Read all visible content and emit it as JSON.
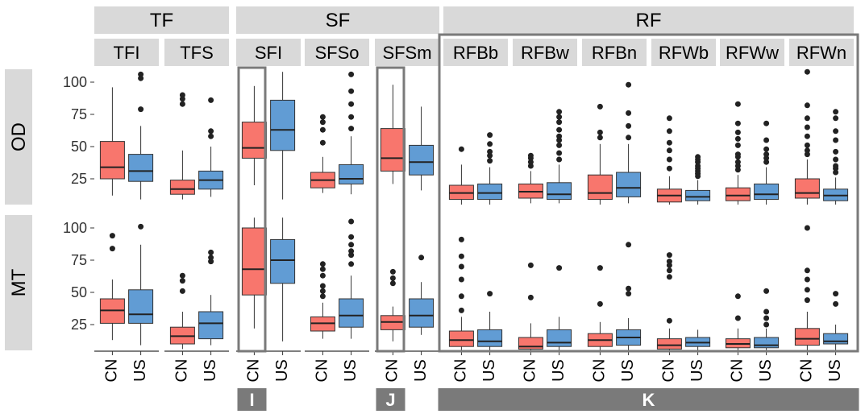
{
  "chart_data": {
    "type": "boxplot",
    "title": "",
    "xlabel": "",
    "ylabel": "",
    "ylim": [
      5,
      110
    ],
    "yticks": [
      25,
      50,
      75,
      100
    ],
    "groups": [
      {
        "label": "TF",
        "panels": [
          "TFI",
          "TFS"
        ]
      },
      {
        "label": "SF",
        "panels": [
          "SFI",
          "SFSo",
          "SFSm"
        ]
      },
      {
        "label": "RF",
        "panels": [
          "RFBb",
          "RFBw",
          "RFBn",
          "RFWb",
          "RFWw",
          "RFWn"
        ]
      }
    ],
    "panels": [
      "TFI",
      "TFS",
      "SFI",
      "SFSo",
      "SFSm",
      "RFBb",
      "RFBw",
      "RFBn",
      "RFWb",
      "RFWw",
      "RFWn"
    ],
    "rows": [
      "OD",
      "MT"
    ],
    "categories": [
      "CN",
      "US"
    ],
    "colors": {
      "CN": "#f8766d",
      "US": "#619cd4"
    },
    "annotations": [
      {
        "label": "I",
        "panels": [
          "SFI"
        ]
      },
      {
        "label": "J",
        "panels": [
          "SFSm"
        ]
      },
      {
        "label": "K",
        "panels": [
          "RFBb",
          "RFBw",
          "RFBn",
          "RFWb",
          "RFWw",
          "RFWn"
        ]
      }
    ],
    "series": [
      {
        "row": "OD",
        "panel": "TFI",
        "cat": "CN",
        "min": 12,
        "q1": 25,
        "median": 34,
        "q3": 54,
        "max": 96,
        "outliers": []
      },
      {
        "row": "OD",
        "panel": "TFI",
        "cat": "US",
        "min": 9,
        "q1": 23,
        "median": 31,
        "q3": 44,
        "max": 66,
        "outliers": [
          79,
          103,
          106
        ]
      },
      {
        "row": "OD",
        "panel": "TFS",
        "cat": "CN",
        "min": 9,
        "q1": 13,
        "median": 17,
        "q3": 24,
        "max": 47,
        "outliers": [
          83,
          87,
          90
        ]
      },
      {
        "row": "OD",
        "panel": "TFS",
        "cat": "US",
        "min": 11,
        "q1": 17,
        "median": 24,
        "q3": 31,
        "max": 50,
        "outliers": [
          58,
          62,
          86
        ]
      },
      {
        "row": "OD",
        "panel": "SFI",
        "cat": "CN",
        "min": 20,
        "q1": 41,
        "median": 49,
        "q3": 69,
        "max": 97,
        "outliers": []
      },
      {
        "row": "OD",
        "panel": "SFI",
        "cat": "US",
        "min": 9,
        "q1": 47,
        "median": 63,
        "q3": 86,
        "max": 108,
        "outliers": []
      },
      {
        "row": "OD",
        "panel": "SFSo",
        "cat": "CN",
        "min": 14,
        "q1": 18,
        "median": 24,
        "q3": 30,
        "max": 42,
        "outliers": [
          53,
          63,
          69,
          73
        ]
      },
      {
        "row": "OD",
        "panel": "SFSo",
        "cat": "US",
        "min": 13,
        "q1": 21,
        "median": 25,
        "q3": 36,
        "max": 58,
        "outliers": [
          64,
          73,
          83,
          93,
          106
        ]
      },
      {
        "row": "OD",
        "panel": "SFSm",
        "cat": "CN",
        "min": 21,
        "q1": 31,
        "median": 41,
        "q3": 64,
        "max": 98,
        "outliers": []
      },
      {
        "row": "OD",
        "panel": "SFSm",
        "cat": "US",
        "min": 16,
        "q1": 28,
        "median": 38,
        "q3": 51,
        "max": 81,
        "outliers": []
      },
      {
        "row": "OD",
        "panel": "RFBb",
        "cat": "CN",
        "min": 5,
        "q1": 9,
        "median": 14,
        "q3": 20,
        "max": 36,
        "outliers": [
          48
        ]
      },
      {
        "row": "OD",
        "panel": "RFBb",
        "cat": "US",
        "min": 5,
        "q1": 9,
        "median": 14,
        "q3": 21,
        "max": 34,
        "outliers": [
          39,
          43,
          46,
          52,
          59
        ]
      },
      {
        "row": "OD",
        "panel": "RFBw",
        "cat": "CN",
        "min": 6,
        "q1": 10,
        "median": 15,
        "q3": 21,
        "max": 31,
        "outliers": [
          35,
          38,
          41,
          43
        ]
      },
      {
        "row": "OD",
        "panel": "RFBw",
        "cat": "US",
        "min": 6,
        "q1": 9,
        "median": 13,
        "q3": 22,
        "max": 36,
        "outliers": [
          40,
          45,
          51,
          55,
          58,
          63,
          69,
          73,
          77
        ]
      },
      {
        "row": "OD",
        "panel": "RFBn",
        "cat": "CN",
        "min": 4,
        "q1": 9,
        "median": 14,
        "q3": 28,
        "max": 52,
        "outliers": [
          57,
          61,
          81
        ]
      },
      {
        "row": "OD",
        "panel": "RFBn",
        "cat": "US",
        "min": 6,
        "q1": 11,
        "median": 18,
        "q3": 30,
        "max": 52,
        "outliers": [
          57,
          66,
          76,
          98
        ]
      },
      {
        "row": "OD",
        "panel": "RFWb",
        "cat": "CN",
        "min": 4,
        "q1": 7,
        "median": 12,
        "q3": 17,
        "max": 27,
        "outliers": [
          33,
          40,
          47,
          53,
          62,
          72
        ]
      },
      {
        "row": "OD",
        "panel": "RFWb",
        "cat": "US",
        "min": 4,
        "q1": 8,
        "median": 11,
        "q3": 16,
        "max": 24,
        "outliers": [
          27,
          29,
          31,
          33,
          35,
          38,
          40,
          42
        ]
      },
      {
        "row": "OD",
        "panel": "RFWw",
        "cat": "CN",
        "min": 4,
        "q1": 8,
        "median": 12,
        "q3": 18,
        "max": 28,
        "outliers": [
          32,
          35,
          38,
          42,
          44,
          51,
          56,
          61,
          68,
          83
        ]
      },
      {
        "row": "OD",
        "panel": "RFWw",
        "cat": "US",
        "min": 4,
        "q1": 9,
        "median": 13,
        "q3": 21,
        "max": 34,
        "outliers": [
          38,
          41,
          44,
          48,
          55,
          68
        ]
      },
      {
        "row": "OD",
        "panel": "RFWn",
        "cat": "CN",
        "min": 5,
        "q1": 10,
        "median": 14,
        "q3": 25,
        "max": 40,
        "outliers": [
          44,
          47,
          51,
          58,
          65,
          72,
          82,
          108
        ]
      },
      {
        "row": "OD",
        "panel": "RFWn",
        "cat": "US",
        "min": 5,
        "q1": 8,
        "median": 12,
        "q3": 17,
        "max": 26,
        "outliers": [
          30,
          33,
          35,
          40,
          46,
          55,
          62,
          72,
          77
        ]
      },
      {
        "row": "MT",
        "panel": "TFI",
        "cat": "CN",
        "min": 13,
        "q1": 26,
        "median": 36,
        "q3": 45,
        "max": 60,
        "outliers": [
          84,
          94
        ]
      },
      {
        "row": "MT",
        "panel": "TFI",
        "cat": "US",
        "min": 9,
        "q1": 26,
        "median": 33,
        "q3": 52,
        "max": 87,
        "outliers": [
          101
        ]
      },
      {
        "row": "MT",
        "panel": "TFS",
        "cat": "CN",
        "min": 6,
        "q1": 10,
        "median": 16,
        "q3": 23,
        "max": 35,
        "outliers": [
          51,
          59,
          63
        ]
      },
      {
        "row": "MT",
        "panel": "TFS",
        "cat": "US",
        "min": 9,
        "q1": 14,
        "median": 26,
        "q3": 35,
        "max": 48,
        "outliers": [
          74,
          77,
          81
        ]
      },
      {
        "row": "MT",
        "panel": "SFI",
        "cat": "CN",
        "min": 22,
        "q1": 48,
        "median": 68,
        "q3": 100,
        "max": 108,
        "outliers": []
      },
      {
        "row": "MT",
        "panel": "SFI",
        "cat": "US",
        "min": 12,
        "q1": 57,
        "median": 75,
        "q3": 91,
        "max": 108,
        "outliers": []
      },
      {
        "row": "MT",
        "panel": "SFSo",
        "cat": "CN",
        "min": 14,
        "q1": 20,
        "median": 26,
        "q3": 31,
        "max": 42,
        "outliers": [
          47,
          51,
          55,
          63,
          68,
          72
        ]
      },
      {
        "row": "MT",
        "panel": "SFSo",
        "cat": "US",
        "min": 14,
        "q1": 23,
        "median": 32,
        "q3": 45,
        "max": 63,
        "outliers": [
          72,
          79,
          82,
          87,
          93,
          105
        ]
      },
      {
        "row": "MT",
        "panel": "SFSm",
        "cat": "CN",
        "min": 12,
        "q1": 21,
        "median": 27,
        "q3": 32,
        "max": 39,
        "outliers": [
          57,
          61,
          66
        ]
      },
      {
        "row": "MT",
        "panel": "SFSm",
        "cat": "US",
        "min": 17,
        "q1": 23,
        "median": 32,
        "q3": 45,
        "max": 58,
        "outliers": [
          77
        ]
      },
      {
        "row": "MT",
        "panel": "RFBb",
        "cat": "CN",
        "min": 5,
        "q1": 8,
        "median": 13,
        "q3": 20,
        "max": 31,
        "outliers": [
          36,
          47,
          60,
          70,
          78,
          91
        ]
      },
      {
        "row": "MT",
        "panel": "RFBb",
        "cat": "US",
        "min": 5,
        "q1": 8,
        "median": 12,
        "q3": 21,
        "max": 35,
        "outliers": [
          49
        ]
      },
      {
        "row": "MT",
        "panel": "RFBw",
        "cat": "CN",
        "min": 4,
        "q1": 6,
        "median": 8,
        "q3": 15,
        "max": 26,
        "outliers": [
          46,
          71
        ]
      },
      {
        "row": "MT",
        "panel": "RFBw",
        "cat": "US",
        "min": 5,
        "q1": 8,
        "median": 11,
        "q3": 21,
        "max": 31,
        "outliers": [
          69
        ]
      },
      {
        "row": "MT",
        "panel": "RFBn",
        "cat": "CN",
        "min": 5,
        "q1": 8,
        "median": 13,
        "q3": 18,
        "max": 27,
        "outliers": [
          41,
          69
        ]
      },
      {
        "row": "MT",
        "panel": "RFBn",
        "cat": "US",
        "min": 5,
        "q1": 9,
        "median": 15,
        "q3": 21,
        "max": 30,
        "outliers": [
          49,
          53,
          87
        ]
      },
      {
        "row": "MT",
        "panel": "RFWb",
        "cat": "CN",
        "min": 4,
        "q1": 6,
        "median": 9,
        "q3": 14,
        "max": 22,
        "outliers": [
          28,
          62,
          67,
          71,
          74,
          79
        ]
      },
      {
        "row": "MT",
        "panel": "RFWb",
        "cat": "US",
        "min": 4,
        "q1": 8,
        "median": 11,
        "q3": 15,
        "max": 21,
        "outliers": []
      },
      {
        "row": "MT",
        "panel": "RFWw",
        "cat": "CN",
        "min": 4,
        "q1": 7,
        "median": 10,
        "q3": 14,
        "max": 22,
        "outliers": [
          30,
          47
        ]
      },
      {
        "row": "MT",
        "panel": "RFWw",
        "cat": "US",
        "min": 4,
        "q1": 7,
        "median": 9,
        "q3": 15,
        "max": 22,
        "outliers": [
          25,
          30,
          35,
          51
        ]
      },
      {
        "row": "MT",
        "panel": "RFWn",
        "cat": "CN",
        "min": 5,
        "q1": 9,
        "median": 14,
        "q3": 22,
        "max": 35,
        "outliers": [
          44,
          52,
          60,
          67,
          100
        ]
      },
      {
        "row": "MT",
        "panel": "RFWn",
        "cat": "US",
        "min": 5,
        "q1": 10,
        "median": 12,
        "q3": 18,
        "max": 25,
        "outliers": [
          41,
          49
        ]
      }
    ]
  }
}
